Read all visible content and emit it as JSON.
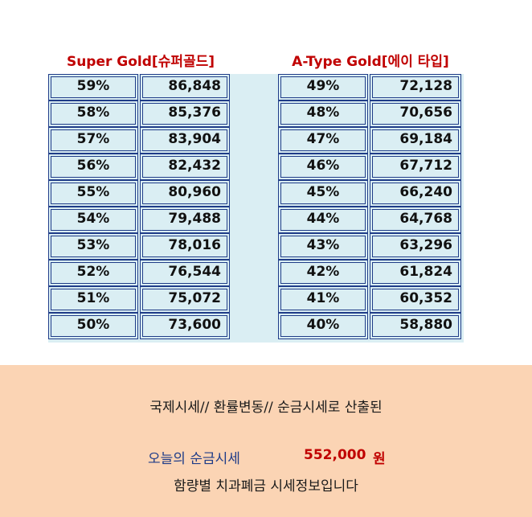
{
  "colors": {
    "title_red": "#c00000",
    "cell_bg": "#daeef3",
    "cell_border": "#1f3c88",
    "footer_bg": "#fbd4b4",
    "label_blue": "#1f3c88"
  },
  "left_table": {
    "title": "Super Gold[슈퍼골드]",
    "rows": [
      {
        "pct": "59%",
        "val": "86,848"
      },
      {
        "pct": "58%",
        "val": "85,376"
      },
      {
        "pct": "57%",
        "val": "83,904"
      },
      {
        "pct": "56%",
        "val": "82,432"
      },
      {
        "pct": "55%",
        "val": "80,960"
      },
      {
        "pct": "54%",
        "val": "79,488"
      },
      {
        "pct": "53%",
        "val": "78,016"
      },
      {
        "pct": "52%",
        "val": "76,544"
      },
      {
        "pct": "51%",
        "val": "75,072"
      },
      {
        "pct": "50%",
        "val": "73,600"
      }
    ]
  },
  "right_table": {
    "title": "A-Type Gold[에이 타입]",
    "rows": [
      {
        "pct": "49%",
        "val": "72,128"
      },
      {
        "pct": "48%",
        "val": "70,656"
      },
      {
        "pct": "47%",
        "val": "69,184"
      },
      {
        "pct": "46%",
        "val": "67,712"
      },
      {
        "pct": "45%",
        "val": "66,240"
      },
      {
        "pct": "44%",
        "val": "64,768"
      },
      {
        "pct": "43%",
        "val": "63,296"
      },
      {
        "pct": "42%",
        "val": "61,824"
      },
      {
        "pct": "41%",
        "val": "60,352"
      },
      {
        "pct": "40%",
        "val": "58,880"
      }
    ]
  },
  "footer": {
    "line1": "국제시세// 환률변동// 순금시세로 산출된",
    "label": "오늘의 순금시세",
    "price": "552,000",
    "unit": "원",
    "line3": "함량별 치과폐금 시세정보입니다"
  }
}
